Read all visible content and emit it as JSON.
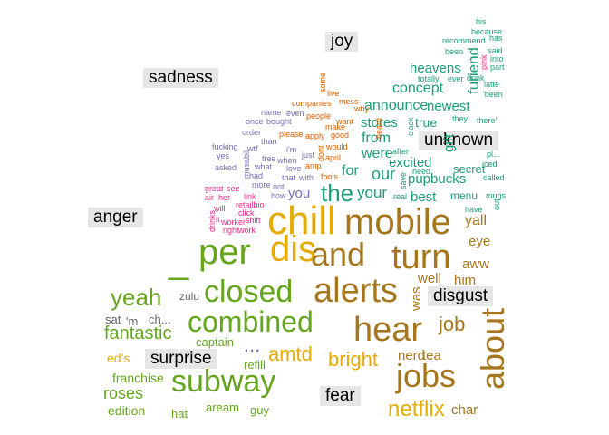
{
  "colors": {
    "joy": "#1b9e77",
    "anticipation": "#a6761d",
    "trust": "#66a61e",
    "surprise": "#e6ab02",
    "anger": "#d95f02",
    "sadness": "#7570b3",
    "fear": "#e7298a",
    "neutral": "#666666",
    "label_bg": "#e6e6e6"
  },
  "category_labels": [
    "joy",
    "sadness",
    "unknown",
    "anger",
    "disgust",
    "surprise",
    "fear"
  ],
  "words": [
    "chill",
    "mobile",
    "per",
    "dis",
    "and",
    "turn",
    "_",
    "alerts",
    "closed",
    "hear",
    "about",
    "combined",
    "jobs",
    "subway",
    "yeah",
    "netflix",
    "amtd",
    "bright",
    "job",
    "fantastic",
    "the",
    "your",
    "our",
    "for",
    "from",
    "were",
    "excited",
    "announce",
    "concept",
    "heavens",
    "stores",
    "true",
    "newest",
    "furiend",
    "pupbucks",
    "secret",
    "best",
    "gift",
    "menu",
    "yall",
    "eye",
    "aww",
    "him",
    "was",
    "well",
    "nerd",
    "tea",
    "char",
    "roses",
    "ed's",
    "franchise",
    "edition",
    "hat",
    "aream",
    "guy",
    "refill",
    "captain",
    "...",
    "sat",
    "'m",
    "ch...",
    "zulu",
    "you",
    "his",
    "because",
    "has",
    "recommend",
    "been",
    "said",
    "into",
    "pink",
    "part",
    "totally",
    "ever",
    "drink",
    "latte",
    "'been",
    "they",
    "there'",
    "iced",
    "called",
    "mugs",
    "out",
    "have",
    "need",
    "pl...",
    "real",
    "save",
    "after",
    "clack",
    "some",
    "live",
    "mess",
    "why",
    "heard",
    "companies",
    "even",
    "want",
    "people",
    "make",
    "good",
    "name",
    "once",
    "bought",
    "order",
    "please",
    "apply",
    "than",
    "i'm",
    "just",
    "dont",
    "would",
    "april",
    "amp",
    "fools",
    "fucking",
    "yes",
    "asked",
    "what",
    "free",
    "when",
    "love",
    "with",
    "that",
    "wtf",
    "had",
    "more",
    "not",
    "how",
    "great",
    "see",
    "air",
    "her",
    "link",
    "retailbio",
    "click",
    "will",
    "drinks",
    "it",
    "worker",
    "shift",
    "right",
    "work",
    "musabil"
  ]
}
